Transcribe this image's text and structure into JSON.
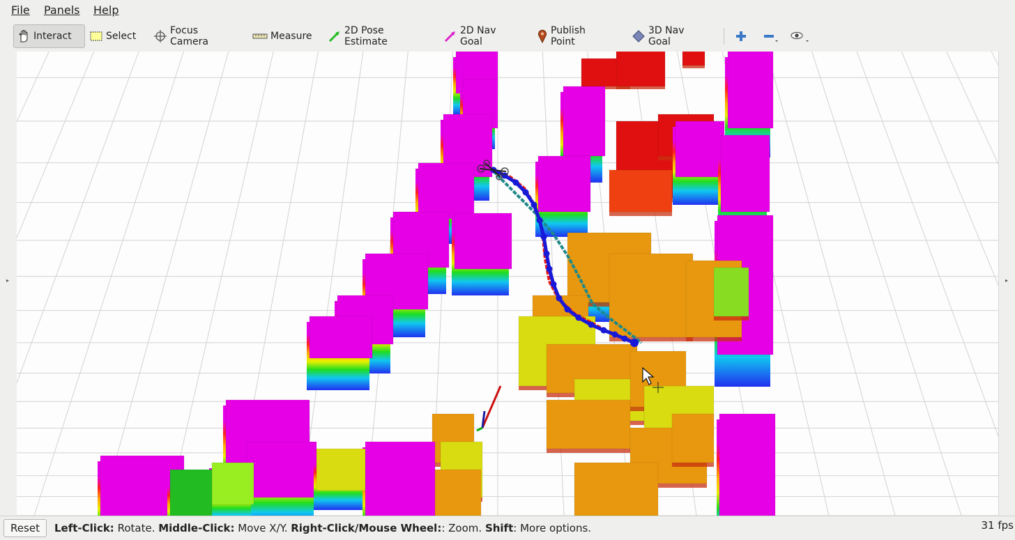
{
  "menu": {
    "file": "File",
    "panels": "Panels",
    "help": "Help"
  },
  "toolbar": {
    "interact": "Interact",
    "select": "Select",
    "focus_camera": "Focus Camera",
    "measure": "Measure",
    "pose_estimate": "2D Pose Estimate",
    "nav_goal": "2D Nav Goal",
    "publish_point": "Publish Point",
    "nav_goal_3d": "3D Nav Goal",
    "active_tool": "Interact"
  },
  "icons": [
    "hand-icon",
    "select-box-icon",
    "focus-crosshair-icon",
    "ruler-icon",
    "green-arrow-icon",
    "magenta-arrow-icon",
    "map-pin-icon",
    "diamond-icon",
    "plus-icon",
    "minus-icon",
    "eye-icon"
  ],
  "colors": {
    "window_bg": "#efefed",
    "grid_line": "#d2d2d2",
    "viewport_bg": "#fdfdfd",
    "magenta": "#e600e6",
    "red": "#e01010",
    "orange": "#e8980e",
    "yellow": "#d8dc10",
    "path_blue": "#1818d8",
    "path_red": "#e81818",
    "path_teal": "#208888"
  },
  "status": {
    "reset": "Reset",
    "left_click_key": "Left-Click:",
    "left_click_desc": " Rotate. ",
    "middle_click_key": "Middle-Click:",
    "middle_click_desc": " Move X/Y. ",
    "right_click_key": "Right-Click/Mouse Wheel:",
    "right_click_desc": ": Zoom. ",
    "shift_key": "Shift",
    "shift_desc": ": More options.",
    "fps": "31 fps"
  }
}
